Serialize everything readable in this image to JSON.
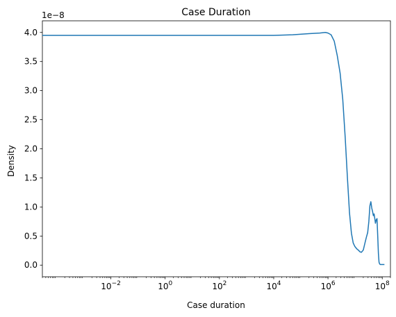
{
  "chart_data": {
    "type": "line",
    "title": "Case Duration",
    "xlabel": "Case duration",
    "ylabel": "Density",
    "x_scale": "log",
    "y_offset_label": "1e−8",
    "y_multiplier": 1e-08,
    "xlim": [
      3e-05,
      200000000
    ],
    "ylim": [
      -0.2,
      4.2
    ],
    "grid": false,
    "legend": "none",
    "line_color": "#1f77b4",
    "x_ticks": [
      {
        "value": 0.01,
        "base": "10",
        "exp": "−2"
      },
      {
        "value": 1,
        "base": "10",
        "exp": "0"
      },
      {
        "value": 100,
        "base": "10",
        "exp": "2"
      },
      {
        "value": 10000,
        "base": "10",
        "exp": "4"
      },
      {
        "value": 1000000,
        "base": "10",
        "exp": "6"
      },
      {
        "value": 100000000,
        "base": "10",
        "exp": "8"
      }
    ],
    "y_ticks": [
      {
        "value": 0.0,
        "label": "0.0"
      },
      {
        "value": 0.5,
        "label": "0.5"
      },
      {
        "value": 1.0,
        "label": "1.0"
      },
      {
        "value": 1.5,
        "label": "1.5"
      },
      {
        "value": 2.0,
        "label": "2.0"
      },
      {
        "value": 2.5,
        "label": "2.5"
      },
      {
        "value": 3.0,
        "label": "3.0"
      },
      {
        "value": 3.5,
        "label": "3.5"
      },
      {
        "value": 4.0,
        "label": "4.0"
      }
    ],
    "series": [
      {
        "x": [
          3e-05,
          0.001,
          0.01,
          0.1,
          1,
          10,
          100,
          1000,
          10000,
          50000,
          200000,
          500000,
          800000,
          1000000,
          1300000,
          1700000,
          2200000,
          2800000,
          3500000,
          4300000,
          5200000,
          6200000,
          7300000,
          8500000,
          9800000,
          11500000,
          13000000,
          15000000,
          17000000,
          20000000,
          23000000,
          26000000,
          29000000,
          32000000,
          35000000,
          38000000,
          41000000,
          44000000,
          47000000,
          50000000,
          53000000,
          56000000,
          60000000,
          64000000,
          68000000,
          72000000,
          76000000,
          80000000,
          85000000,
          90000000,
          95000000,
          100000000,
          110000000,
          120000000
        ],
        "y": [
          3.95,
          3.95,
          3.95,
          3.95,
          3.95,
          3.95,
          3.95,
          3.95,
          3.95,
          3.96,
          3.98,
          3.99,
          4.0,
          3.99,
          3.96,
          3.85,
          3.6,
          3.3,
          2.85,
          2.2,
          1.5,
          0.9,
          0.55,
          0.38,
          0.32,
          0.28,
          0.26,
          0.23,
          0.22,
          0.26,
          0.38,
          0.48,
          0.56,
          0.75,
          1.02,
          1.09,
          0.98,
          0.92,
          0.85,
          0.88,
          0.8,
          0.72,
          0.78,
          0.8,
          0.5,
          0.2,
          0.05,
          0.02,
          0.01,
          0.01,
          0.01,
          0.01,
          0.01,
          0.01
        ]
      }
    ]
  }
}
